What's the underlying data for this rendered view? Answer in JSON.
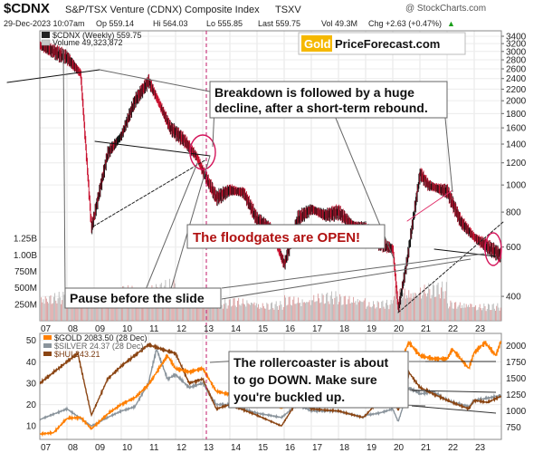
{
  "header": {
    "symbol": "$CDNX",
    "name": "S&P/TSX Venture (CDNX) Composite Index",
    "exchange": "TSXV",
    "date": "29-Dec-2023 10:07am",
    "op": "Op 559.14",
    "hi": "Hi 564.03",
    "lo": "Lo 555.85",
    "last": "Last 559.75",
    "vol": "Vol 49.3M",
    "chg": "Chg +2.63 (+0.47%)",
    "chg_arrow": "▲",
    "watermark": "@ StockCharts.com"
  },
  "top_panel": {
    "legend_main": "$CDNX (Weekly) 559.75",
    "legend_volume": "Volume 49,323,872",
    "logo_gold": "Gold",
    "logo_rest": "PriceForecast.com",
    "right_ticks": [
      "3400",
      "3200",
      "3000",
      "2800",
      "2600",
      "2400",
      "2200",
      "2000",
      "1800",
      "1600",
      "1400",
      "1200",
      "1000",
      "800",
      "600",
      "400"
    ],
    "left_vol_ticks": [
      "1.25B",
      "1.00B",
      "750M",
      "500M",
      "250M"
    ],
    "callout_breakdown": [
      "Breakdown is followed by a huge",
      "decline, after a short-term rebound."
    ],
    "callout_floodgates": "The floodgates are OPEN!",
    "callout_pause": "Pause before the slide"
  },
  "bottom_panel": {
    "legend_gold": "$GOLD 2083.50 (28 Dec)",
    "legend_silver": "$SILVER 24.37 (28 Dec)",
    "legend_hui": "$HUI 243.21",
    "left_ticks": [
      "50",
      "40",
      "30",
      "20",
      "10"
    ],
    "right_ticks": [
      "2000",
      "1750",
      "1500",
      "1250",
      "1000",
      "750"
    ],
    "callout": [
      "The rollercoaster is about",
      "to go DOWN. Make sure",
      "you're buckled up."
    ]
  },
  "x_axis_labels": [
    "07",
    "08",
    "09",
    "10",
    "11",
    "12",
    "13",
    "14",
    "15",
    "16",
    "17",
    "18",
    "19",
    "20",
    "21",
    "22",
    "23"
  ],
  "colors": {
    "gold_series": "#ff7f00",
    "silver_series": "#8a949c",
    "hui_series": "#8b4513",
    "callout_red": "#b01010",
    "circle_red": "#d4145a",
    "logo_gold_bg": "#f5b800"
  },
  "chart_data": [
    {
      "type": "line",
      "subtype": "weekly-bar",
      "series": [
        {
          "name": "$CDNX (Weekly) 559.75",
          "x": [
            2007.0,
            2007.5,
            2008.0,
            2008.5,
            2008.9,
            2009.5,
            2010.0,
            2010.5,
            2011.0,
            2011.3,
            2011.8,
            2012.3,
            2012.8,
            2013.0,
            2013.5,
            2014.0,
            2014.5,
            2015.0,
            2015.5,
            2016.0,
            2016.5,
            2017.0,
            2017.5,
            2018.0,
            2018.5,
            2019.0,
            2019.5,
            2020.0,
            2020.2,
            2020.5,
            2021.0,
            2021.3,
            2021.8,
            2022.0,
            2022.5,
            2023.0,
            2023.5,
            2023.99
          ],
          "values": [
            3150,
            3000,
            2850,
            2500,
            700,
            1300,
            1500,
            2000,
            2350,
            2050,
            1600,
            1450,
            1250,
            1120,
            900,
            960,
            940,
            750,
            700,
            520,
            760,
            820,
            780,
            800,
            720,
            700,
            620,
            590,
            360,
            520,
            1100,
            1000,
            960,
            950,
            740,
            650,
            600,
            560
          ]
        }
      ],
      "volume_series": {
        "name": "Volume",
        "x": [
          2007,
          2008,
          2009,
          2010,
          2011,
          2012,
          2013,
          2014,
          2015,
          2016,
          2017,
          2018,
          2019,
          2020,
          2021,
          2022,
          2023
        ],
        "values": [
          450000000,
          500000000,
          380000000,
          560000000,
          640000000,
          360000000,
          330000000,
          370000000,
          300000000,
          400000000,
          450000000,
          420000000,
          320000000,
          560000000,
          600000000,
          330000000,
          270000000
        ]
      },
      "y_axis_right": {
        "scale": "log",
        "range": [
          350,
          3400
        ]
      },
      "y_axis_left_volume": {
        "range": [
          0,
          1500000000
        ]
      },
      "grid": true
    },
    {
      "type": "line",
      "series": [
        {
          "name": "$GOLD 2083.50 (28 Dec)",
          "axis": "right",
          "x": [
            2007,
            2007.5,
            2008,
            2008.5,
            2008.9,
            2009.5,
            2010,
            2010.5,
            2011,
            2011.7,
            2012,
            2012.5,
            2013,
            2013.5,
            2014,
            2014.5,
            2015,
            2015.9,
            2016.5,
            2017,
            2017.5,
            2018,
            2018.7,
            2019,
            2019.5,
            2020,
            2020.6,
            2021,
            2021.5,
            2022,
            2022.2,
            2022.8,
            2023,
            2023.4,
            2023.8,
            2023.99
          ],
          "values": [
            640,
            660,
            880,
            900,
            720,
            950,
            1100,
            1200,
            1400,
            1850,
            1650,
            1600,
            1650,
            1300,
            1250,
            1300,
            1200,
            1050,
            1350,
            1250,
            1250,
            1330,
            1190,
            1300,
            1400,
            1550,
            2050,
            1850,
            1800,
            1800,
            1950,
            1650,
            1900,
            2050,
            1850,
            2083.5
          ]
        },
        {
          "name": "$SILVER 24.37 (28 Dec)",
          "axis": "left",
          "x": [
            2007,
            2008,
            2008.9,
            2009.5,
            2010,
            2010.5,
            2011,
            2011.3,
            2011.7,
            2012,
            2012.5,
            2013,
            2013.5,
            2014,
            2015,
            2015.9,
            2016.5,
            2017,
            2018,
            2018.9,
            2019,
            2019.5,
            2020,
            2020.2,
            2020.6,
            2021,
            2021.5,
            2022,
            2022.8,
            2023,
            2023.5,
            2023.99
          ],
          "values": [
            13,
            18,
            10,
            14,
            17,
            19,
            30,
            46,
            32,
            34,
            28,
            30,
            20,
            20,
            16,
            14,
            20,
            17,
            17,
            14,
            15,
            16,
            18,
            12,
            28,
            25,
            26,
            22,
            19,
            22,
            23,
            24.37
          ]
        },
        {
          "name": "$HUI 243.21",
          "axis": "left",
          "x": [
            2007,
            2007.5,
            2008,
            2008.4,
            2008.9,
            2009.5,
            2010,
            2010.5,
            2011,
            2011.7,
            2012,
            2012.5,
            2013,
            2013.5,
            2014,
            2015,
            2015.9,
            2016.5,
            2017,
            2018,
            2018.9,
            2019,
            2019.5,
            2020,
            2020.2,
            2020.6,
            2021,
            2021.5,
            2022,
            2022.8,
            2023,
            2023.5,
            2023.99
          ],
          "values": [
            30,
            35,
            40,
            44,
            15,
            32,
            38,
            43,
            48,
            45,
            44,
            30,
            32,
            18,
            20,
            15,
            10,
            22,
            18,
            17,
            14,
            15,
            22,
            25,
            17,
            35,
            28,
            25,
            22,
            18,
            22,
            21,
            24
          ]
        }
      ],
      "y_axis_left": {
        "range": [
          5,
          52
        ]
      },
      "y_axis_right": {
        "range": [
          600,
          2150
        ]
      },
      "grid": true
    }
  ]
}
